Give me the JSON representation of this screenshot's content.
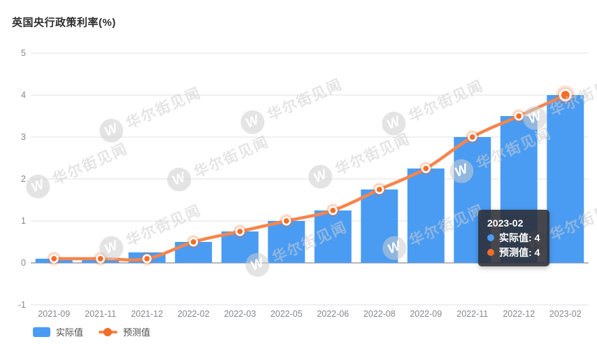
{
  "header": {
    "title": "英国央行政策利率(%)"
  },
  "watermark": {
    "logo_letter": "W",
    "text": "华尔街见闻"
  },
  "chart_data": {
    "type": "bar",
    "title": "英国央行政策利率(%)",
    "categories": [
      "2021-09",
      "2021-11",
      "2021-12",
      "2022-02",
      "2022-03",
      "2022-05",
      "2022-06",
      "2022-08",
      "2022-09",
      "2022-11",
      "2022-12",
      "2023-02"
    ],
    "series": [
      {
        "name": "实际值",
        "type": "bar",
        "color": "#4a9cf3",
        "values": [
          0.1,
          0.1,
          0.25,
          0.5,
          0.75,
          1.0,
          1.25,
          1.75,
          2.25,
          3.0,
          3.5,
          4.0
        ]
      },
      {
        "name": "预测值",
        "type": "line",
        "color": "#f6854d",
        "point_color": "#f26e28",
        "values": [
          0.1,
          0.1,
          0.1,
          0.5,
          0.75,
          1.0,
          1.25,
          1.75,
          2.25,
          3.0,
          3.5,
          4.0
        ]
      }
    ],
    "xlabel": "",
    "ylabel": "",
    "ylim": [
      -1,
      5
    ],
    "y_ticks": [
      5,
      4,
      3,
      2,
      1,
      0,
      -1
    ],
    "grid": true,
    "legend_position": "bottom-left",
    "highlighted_category": "2023-02"
  },
  "tooltip": {
    "title": "2023-02",
    "rows": [
      {
        "label": "实际值:",
        "value": "4",
        "color": "#4a9cf3"
      },
      {
        "label": "预测值:",
        "value": "4",
        "color": "#f26e28"
      }
    ]
  },
  "colors": {
    "actual_blue": "#4a9cf3",
    "forecast_orange": "#f6854d",
    "forecast_point": "#f26e28",
    "grid_line": "#e2e2e5",
    "zero_axis": "#6e7079",
    "axis_label": "#85888d",
    "tooltip_bg": "rgba(43,46,52,0.88)"
  }
}
